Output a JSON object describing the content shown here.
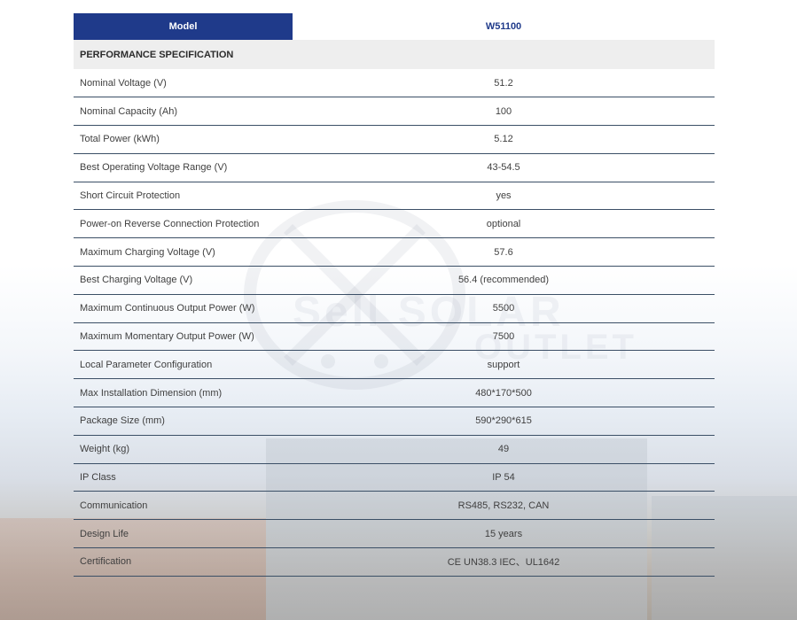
{
  "table": {
    "header": {
      "model_label": "Model",
      "model_value": "W51100"
    },
    "section_title": "PERFORMANCE SPECIFICATION",
    "rows": [
      {
        "label": "Nominal Voltage (V)",
        "value": "51.2"
      },
      {
        "label": "Nominal Capacity (Ah)",
        "value": "100"
      },
      {
        "label": "Total Power (kWh)",
        "value": "5.12"
      },
      {
        "label": "Best Operating Voltage Range (V)",
        "value": "43-54.5"
      },
      {
        "label": "Short Circuit Protection",
        "value": "yes"
      },
      {
        "label": "Power-on Reverse Connection Protection",
        "value": "optional"
      },
      {
        "label": "Maximum Charging Voltage (V)",
        "value": "57.6"
      },
      {
        "label": "Best Charging Voltage (V)",
        "value": "56.4 (recommended)"
      },
      {
        "label": "Maximum Continuous Output Power (W)",
        "value": "5500"
      },
      {
        "label": "Maximum Momentary Output Power (W)",
        "value": "7500"
      },
      {
        "label": "Local Parameter Configuration",
        "value": "support"
      },
      {
        "label": "Max Installation Dimension (mm)",
        "value": "480*170*500"
      },
      {
        "label": "Package Size (mm)",
        "value": "590*290*615"
      },
      {
        "label": "Weight (kg)",
        "value": "49"
      },
      {
        "label": "IP Class",
        "value": "IP 54"
      },
      {
        "label": "Communication",
        "value": "RS485, RS232, CAN"
      },
      {
        "label": "Design Life",
        "value": "15 years"
      },
      {
        "label": "Certification",
        "value": "CE UN38.3 IEC、UL1642"
      }
    ]
  },
  "watermark": {
    "line1": "Sell SOLAR",
    "line2": "OUTLET"
  }
}
